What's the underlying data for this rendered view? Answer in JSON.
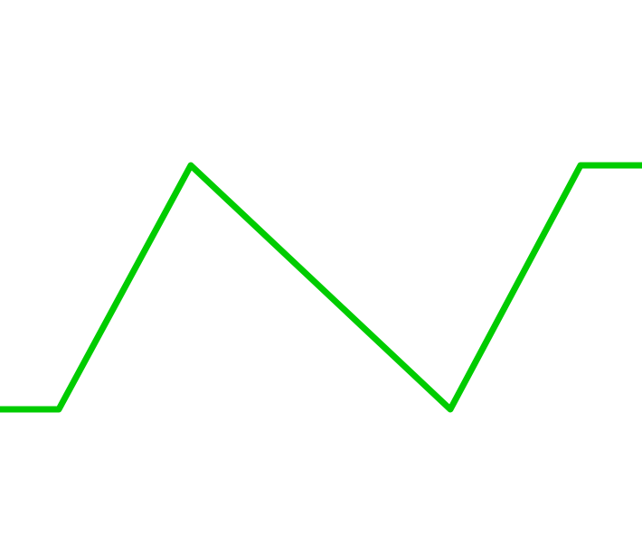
{
  "chart_data": {
    "type": "line",
    "x": [
      0,
      1,
      2,
      3,
      4,
      5
    ],
    "series": [
      {
        "values": [
          0,
          0,
          1,
          0,
          1,
          1
        ],
        "color": "#00cc00"
      }
    ],
    "ylim": [
      0,
      1
    ],
    "grid": false,
    "legend": "none"
  }
}
